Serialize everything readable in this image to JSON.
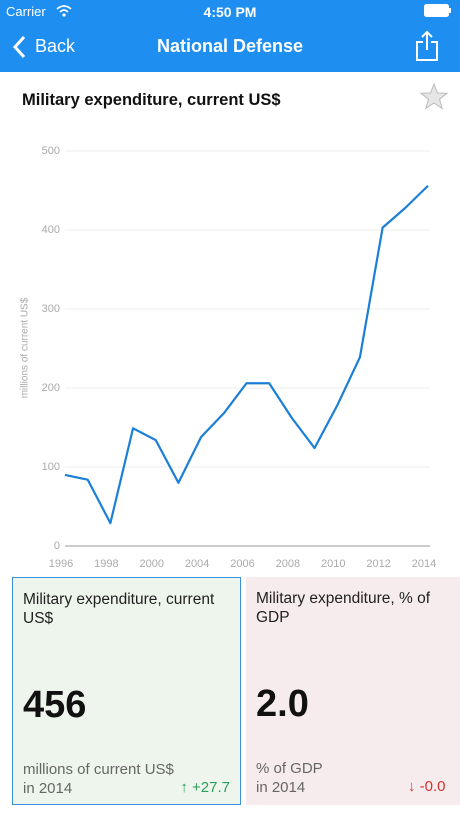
{
  "status_bar": {
    "carrier": "Carrier",
    "time": "4:50 PM"
  },
  "nav": {
    "back": "Back",
    "title": "National Defense"
  },
  "chart_data": {
    "type": "line",
    "title": "Military expenditure, current US$",
    "y_label": "millions of current US$",
    "categories": [
      "1996",
      null,
      "1998",
      null,
      "2000",
      null,
      "2004",
      null,
      "2006",
      null,
      "2008",
      null,
      "2010",
      null,
      "2012",
      null,
      "2014"
    ],
    "values": [
      90,
      84,
      29,
      149,
      134,
      80,
      138,
      168,
      206,
      206,
      162,
      124,
      178,
      239,
      403,
      428,
      456
    ],
    "color": "#1b7fd8",
    "ylim": [
      0,
      500
    ],
    "yticks": [
      0,
      100,
      200,
      300,
      400,
      500
    ],
    "grid": true
  },
  "cards": [
    {
      "title": "Military expenditure, current US$",
      "value": "456",
      "unit": "millions of current US$",
      "year": "in 2014",
      "arrow": "↑",
      "change": "+27.7"
    },
    {
      "title": "Military expenditure, % of GDP",
      "value": "2.0",
      "unit": "% of GDP",
      "year": "in 2014",
      "arrow": "↓",
      "change": "-0.0"
    }
  ]
}
